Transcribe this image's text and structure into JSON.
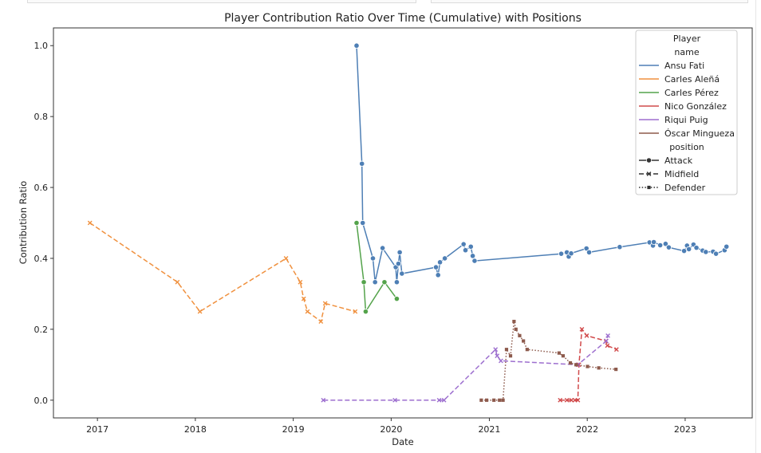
{
  "chart_data": {
    "type": "line",
    "title": "Player Contribution Ratio Over Time (Cumulative) with Positions",
    "xlabel": "Date",
    "ylabel": "Contribution Ratio",
    "xlim": [
      "2016-07-21",
      "2023-09-08"
    ],
    "ylim": [
      -0.05,
      1.05
    ],
    "x_ticks": [
      "2017",
      "2018",
      "2019",
      "2020",
      "2021",
      "2022",
      "2023"
    ],
    "y_ticks": [
      "0.0",
      "0.2",
      "0.4",
      "0.6",
      "0.8",
      "1.0"
    ],
    "grid": false,
    "legend": {
      "placement": "top-right",
      "hue_title": "Player\nname",
      "style_title": "position",
      "styles": [
        {
          "name": "Attack",
          "dash": "solid",
          "marker": "circle"
        },
        {
          "name": "Midfield",
          "dash": "dashed",
          "marker": "x"
        },
        {
          "name": "Defender",
          "dash": "dotted",
          "marker": "square"
        }
      ]
    },
    "series": [
      {
        "name": "Ansu Fati",
        "position": "Attack",
        "color": "#4e7fb5",
        "points": [
          [
            "2019-08-25",
            1.0
          ],
          [
            "2019-09-14",
            0.667
          ],
          [
            "2019-09-17",
            0.5
          ],
          [
            "2019-10-25",
            0.4
          ],
          [
            "2019-11-02",
            0.333
          ],
          [
            "2019-11-30",
            0.429
          ],
          [
            "2020-01-18",
            0.375
          ],
          [
            "2020-01-22",
            0.333
          ],
          [
            "2020-01-28",
            0.385
          ],
          [
            "2020-02-02",
            0.417
          ],
          [
            "2020-02-10",
            0.357
          ],
          [
            "2020-06-16",
            0.375
          ],
          [
            "2020-06-24",
            0.353
          ],
          [
            "2020-07-01",
            0.389
          ],
          [
            "2020-07-19",
            0.4
          ],
          [
            "2020-09-27",
            0.44
          ],
          [
            "2020-10-04",
            0.423
          ],
          [
            "2020-10-24",
            0.433
          ],
          [
            "2020-10-31",
            0.407
          ],
          [
            "2020-11-07",
            0.393
          ],
          [
            "2021-09-26",
            0.413
          ],
          [
            "2021-10-17",
            0.417
          ],
          [
            "2021-10-24",
            0.405
          ],
          [
            "2021-11-02",
            0.414
          ],
          [
            "2021-12-29",
            0.428
          ],
          [
            "2022-01-08",
            0.417
          ],
          [
            "2022-05-02",
            0.432
          ],
          [
            "2022-08-21",
            0.445
          ],
          [
            "2022-09-03",
            0.436
          ],
          [
            "2022-09-06",
            0.446
          ],
          [
            "2022-09-30",
            0.437
          ],
          [
            "2022-10-20",
            0.441
          ],
          [
            "2022-11-01",
            0.431
          ],
          [
            "2022-12-28",
            0.421
          ],
          [
            "2023-01-08",
            0.436
          ],
          [
            "2023-01-15",
            0.426
          ],
          [
            "2023-02-01",
            0.439
          ],
          [
            "2023-02-12",
            0.43
          ],
          [
            "2023-03-07",
            0.422
          ],
          [
            "2023-03-19",
            0.418
          ],
          [
            "2023-04-15",
            0.419
          ],
          [
            "2023-04-26",
            0.413
          ],
          [
            "2023-05-28",
            0.423
          ],
          [
            "2023-06-04",
            0.433
          ]
        ]
      },
      {
        "name": "Carles Aleñá",
        "position": "Midfield",
        "color": "#f0913f",
        "points": [
          [
            "2016-12-04",
            0.5
          ],
          [
            "2017-10-26",
            0.333
          ],
          [
            "2018-01-18",
            0.25
          ],
          [
            "2018-12-05",
            0.4
          ],
          [
            "2019-01-27",
            0.333
          ],
          [
            "2019-02-09",
            0.286
          ],
          [
            "2019-02-23",
            0.25
          ],
          [
            "2019-04-14",
            0.222
          ],
          [
            "2019-04-30",
            0.273
          ],
          [
            "2019-08-20",
            0.25
          ]
        ]
      },
      {
        "name": "Carles Pérez",
        "position": "Attack",
        "color": "#54a34b",
        "points": [
          [
            "2019-08-25",
            0.5
          ],
          [
            "2019-09-21",
            0.333
          ],
          [
            "2019-09-28",
            0.25
          ],
          [
            "2019-12-07",
            0.333
          ],
          [
            "2020-01-22",
            0.286
          ]
        ]
      },
      {
        "name": "Nico González",
        "position": "Midfield",
        "color": "#d14b4c",
        "points": [
          [
            "2021-09-22",
            0.0
          ],
          [
            "2021-10-17",
            0.0
          ],
          [
            "2021-11-03",
            0.0
          ],
          [
            "2021-11-16",
            0.0
          ],
          [
            "2021-11-27",
            0.0
          ],
          [
            "2021-12-01",
            0.1
          ],
          [
            "2021-12-12",
            0.2
          ],
          [
            "2021-12-30",
            0.182
          ],
          [
            "2022-03-12",
            0.167
          ],
          [
            "2022-03-17",
            0.154
          ],
          [
            "2022-04-20",
            0.143
          ]
        ]
      },
      {
        "name": "Riqui Puig",
        "position": "Midfield",
        "color": "#9d6fcf",
        "points": [
          [
            "2019-04-23",
            0.0
          ],
          [
            "2020-01-15",
            0.0
          ],
          [
            "2020-06-28",
            0.0
          ],
          [
            "2020-07-16",
            0.0
          ],
          [
            "2021-01-24",
            0.143
          ],
          [
            "2021-01-30",
            0.125
          ],
          [
            "2021-02-13",
            0.111
          ],
          [
            "2021-11-27",
            0.1
          ],
          [
            "2022-03-13",
            0.167
          ],
          [
            "2022-03-19",
            0.182
          ]
        ]
      },
      {
        "name": "Óscar Mingueza",
        "position": "Defender",
        "color": "#8d5a4c",
        "points": [
          [
            "2020-12-02",
            0.0
          ],
          [
            "2020-12-22",
            0.0
          ],
          [
            "2021-01-18",
            0.0
          ],
          [
            "2021-02-08",
            0.0
          ],
          [
            "2021-02-21",
            0.0
          ],
          [
            "2021-03-06",
            0.143
          ],
          [
            "2021-03-21",
            0.125
          ],
          [
            "2021-04-03",
            0.222
          ],
          [
            "2021-04-10",
            0.2
          ],
          [
            "2021-04-24",
            0.182
          ],
          [
            "2021-05-08",
            0.167
          ],
          [
            "2021-05-22",
            0.143
          ],
          [
            "2021-09-18",
            0.133
          ],
          [
            "2021-10-03",
            0.125
          ],
          [
            "2021-10-30",
            0.105
          ],
          [
            "2021-11-20",
            0.1
          ],
          [
            "2022-01-02",
            0.095
          ],
          [
            "2022-02-13",
            0.091
          ],
          [
            "2022-04-18",
            0.087
          ]
        ]
      }
    ]
  }
}
